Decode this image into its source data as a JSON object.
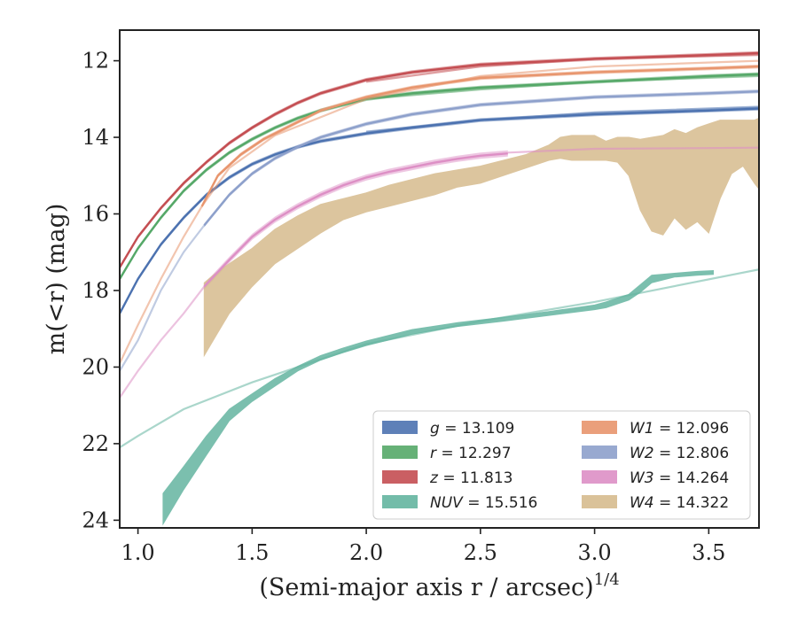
{
  "chart_data": {
    "type": "line",
    "xlabel": "(Semi-major axis r / arcsec)",
    "xlabel_superscript": "1/4",
    "ylabel": "m(<r) (mag)",
    "xlim": [
      0.92,
      3.72
    ],
    "ylim": [
      24.2,
      11.2
    ],
    "y_inverted": true,
    "x_ticks": [
      1.0,
      1.5,
      2.0,
      2.5,
      3.0,
      3.5
    ],
    "x_tick_labels": [
      "1.0",
      "1.5",
      "2.0",
      "2.5",
      "3.0",
      "3.5"
    ],
    "y_ticks": [
      12,
      14,
      16,
      18,
      20,
      22,
      24
    ],
    "y_tick_labels": [
      "12",
      "14",
      "16",
      "18",
      "20",
      "22",
      "24"
    ],
    "grid": false,
    "legend_position": "lower-right",
    "legend_columns": 2,
    "series": [
      {
        "name": "g = 13.109",
        "legend_italic": "g",
        "legend_value": "= 13.109",
        "color": "#4c72b0",
        "points": [
          [
            0.92,
            18.6
          ],
          [
            1.0,
            17.7
          ],
          [
            1.1,
            16.8
          ],
          [
            1.2,
            16.1
          ],
          [
            1.3,
            15.5
          ],
          [
            1.4,
            15.05
          ],
          [
            1.5,
            14.7
          ],
          [
            1.6,
            14.45
          ],
          [
            1.7,
            14.25
          ],
          [
            1.8,
            14.1
          ],
          [
            2.0,
            13.9
          ],
          [
            2.2,
            13.75
          ],
          [
            2.5,
            13.55
          ],
          [
            3.0,
            13.4
          ],
          [
            3.5,
            13.3
          ],
          [
            3.72,
            13.25
          ]
        ],
        "extrapolation": [
          [
            2.0,
            13.85
          ],
          [
            2.5,
            13.55
          ],
          [
            3.0,
            13.35
          ],
          [
            3.72,
            13.2
          ]
        ],
        "band_half_width": 0.05
      },
      {
        "name": "r = 12.297",
        "legend_italic": "r",
        "legend_value": "= 12.297",
        "color": "#55a868",
        "points": [
          [
            0.92,
            17.7
          ],
          [
            1.0,
            16.9
          ],
          [
            1.1,
            16.1
          ],
          [
            1.2,
            15.4
          ],
          [
            1.3,
            14.85
          ],
          [
            1.4,
            14.4
          ],
          [
            1.5,
            14.05
          ],
          [
            1.6,
            13.75
          ],
          [
            1.7,
            13.5
          ],
          [
            1.8,
            13.3
          ],
          [
            2.0,
            13.0
          ],
          [
            2.2,
            12.85
          ],
          [
            2.5,
            12.7
          ],
          [
            3.0,
            12.55
          ],
          [
            3.5,
            12.4
          ],
          [
            3.72,
            12.35
          ]
        ],
        "extrapolation": [
          [
            2.0,
            13.0
          ],
          [
            2.5,
            12.75
          ],
          [
            3.0,
            12.55
          ],
          [
            3.72,
            12.4
          ]
        ],
        "band_half_width": 0.05
      },
      {
        "name": "z = 11.813",
        "legend_italic": "z",
        "legend_value": "= 11.813",
        "color": "#c44e52",
        "points": [
          [
            0.92,
            17.4
          ],
          [
            1.0,
            16.6
          ],
          [
            1.1,
            15.85
          ],
          [
            1.2,
            15.2
          ],
          [
            1.3,
            14.65
          ],
          [
            1.4,
            14.15
          ],
          [
            1.5,
            13.75
          ],
          [
            1.6,
            13.4
          ],
          [
            1.7,
            13.1
          ],
          [
            1.8,
            12.85
          ],
          [
            2.0,
            12.5
          ],
          [
            2.2,
            12.3
          ],
          [
            2.5,
            12.1
          ],
          [
            3.0,
            11.95
          ],
          [
            3.5,
            11.85
          ],
          [
            3.72,
            11.8
          ]
        ],
        "extrapolation": [
          [
            2.0,
            12.55
          ],
          [
            2.5,
            12.15
          ],
          [
            3.0,
            11.95
          ],
          [
            3.72,
            11.85
          ]
        ],
        "band_half_width": 0.05
      },
      {
        "name": "NUV = 15.516",
        "legend_italic": "NUV",
        "legend_value": "= 15.516",
        "color": "#64b5a0",
        "band": [
          [
            1.11,
            23.3,
            24.1
          ],
          [
            1.2,
            22.6,
            23.2
          ],
          [
            1.3,
            21.8,
            22.3
          ],
          [
            1.4,
            21.1,
            21.4
          ],
          [
            1.5,
            20.7,
            20.9
          ],
          [
            1.6,
            20.3,
            20.5
          ],
          [
            1.7,
            19.98,
            20.1
          ],
          [
            1.8,
            19.7,
            19.82
          ],
          [
            1.9,
            19.5,
            19.62
          ],
          [
            2.0,
            19.32,
            19.44
          ],
          [
            2.2,
            19.02,
            19.14
          ],
          [
            2.4,
            18.84,
            18.94
          ],
          [
            2.6,
            18.7,
            18.8
          ],
          [
            2.8,
            18.55,
            18.65
          ],
          [
            3.0,
            18.38,
            18.5
          ],
          [
            3.05,
            18.3,
            18.45
          ],
          [
            3.15,
            18.1,
            18.25
          ],
          [
            3.2,
            17.85,
            18.05
          ],
          [
            3.25,
            17.6,
            17.8
          ],
          [
            3.35,
            17.55,
            17.65
          ],
          [
            3.45,
            17.5,
            17.6
          ],
          [
            3.52,
            17.48,
            17.58
          ]
        ],
        "extrapolation": [
          [
            0.92,
            22.1
          ],
          [
            1.0,
            21.8
          ],
          [
            1.2,
            21.1
          ],
          [
            1.5,
            20.4
          ],
          [
            2.0,
            19.4
          ],
          [
            2.5,
            18.8
          ],
          [
            3.0,
            18.3
          ],
          [
            3.72,
            17.45
          ]
        ]
      },
      {
        "name": "W1 = 12.096",
        "legend_italic": "W1",
        "legend_value": "= 12.096",
        "color": "#e8956d",
        "points": [
          [
            1.28,
            15.8
          ],
          [
            1.35,
            15.0
          ],
          [
            1.45,
            14.45
          ],
          [
            1.55,
            14.05
          ],
          [
            1.7,
            13.6
          ],
          [
            1.8,
            13.3
          ],
          [
            2.0,
            12.95
          ],
          [
            2.2,
            12.7
          ],
          [
            2.5,
            12.45
          ],
          [
            3.0,
            12.3
          ],
          [
            3.5,
            12.2
          ],
          [
            3.72,
            12.15
          ]
        ],
        "extrapolation": [
          [
            0.92,
            19.9
          ],
          [
            1.0,
            18.9
          ],
          [
            1.1,
            17.7
          ],
          [
            1.2,
            16.6
          ],
          [
            1.28,
            15.8
          ],
          [
            1.4,
            14.8
          ],
          [
            1.6,
            13.95
          ],
          [
            2.0,
            13.0
          ],
          [
            2.5,
            12.4
          ],
          [
            3.0,
            12.15
          ],
          [
            3.72,
            12.0
          ]
        ],
        "band_half_width": 0.05
      },
      {
        "name": "W2 = 12.806",
        "legend_italic": "W2",
        "legend_value": "= 12.806",
        "color": "#8da0cb",
        "points": [
          [
            1.29,
            16.3
          ],
          [
            1.4,
            15.5
          ],
          [
            1.5,
            14.95
          ],
          [
            1.6,
            14.55
          ],
          [
            1.7,
            14.25
          ],
          [
            1.8,
            14.0
          ],
          [
            2.0,
            13.65
          ],
          [
            2.2,
            13.4
          ],
          [
            2.5,
            13.15
          ],
          [
            3.0,
            12.95
          ],
          [
            3.5,
            12.85
          ],
          [
            3.72,
            12.8
          ]
        ],
        "extrapolation": [
          [
            0.92,
            20.1
          ],
          [
            1.0,
            19.3
          ],
          [
            1.1,
            18.0
          ],
          [
            1.2,
            17.0
          ],
          [
            1.29,
            16.3
          ]
        ],
        "band_half_width": 0.05
      },
      {
        "name": "W3 = 14.264",
        "legend_italic": "W3",
        "legend_value": "= 14.264",
        "color": "#dd8fc5",
        "points": [
          [
            1.29,
            17.9
          ],
          [
            1.4,
            17.2
          ],
          [
            1.5,
            16.6
          ],
          [
            1.6,
            16.15
          ],
          [
            1.7,
            15.8
          ],
          [
            1.8,
            15.5
          ],
          [
            1.9,
            15.25
          ],
          [
            2.0,
            15.05
          ],
          [
            2.1,
            14.9
          ],
          [
            2.2,
            14.78
          ],
          [
            2.3,
            14.66
          ],
          [
            2.4,
            14.56
          ],
          [
            2.5,
            14.48
          ],
          [
            2.62,
            14.42
          ]
        ],
        "extrapolation": [
          [
            0.92,
            20.8
          ],
          [
            1.0,
            20.1
          ],
          [
            1.1,
            19.3
          ],
          [
            1.2,
            18.6
          ],
          [
            1.29,
            17.9
          ]
        ],
        "tail": [
          [
            2.62,
            14.4
          ],
          [
            3.0,
            14.3
          ],
          [
            3.5,
            14.28
          ],
          [
            3.72,
            14.27
          ]
        ],
        "band_half_width": 0.08
      },
      {
        "name": "W4 = 14.322",
        "legend_italic": "W4",
        "legend_value": "= 14.322",
        "color": "#d6bb8e",
        "band": [
          [
            1.29,
            17.8,
            19.7
          ],
          [
            1.35,
            17.5,
            19.1
          ],
          [
            1.4,
            17.3,
            18.6
          ],
          [
            1.5,
            16.9,
            17.9
          ],
          [
            1.6,
            16.4,
            17.3
          ],
          [
            1.7,
            16.05,
            16.9
          ],
          [
            1.8,
            15.75,
            16.5
          ],
          [
            1.9,
            15.6,
            16.15
          ],
          [
            2.0,
            15.45,
            15.95
          ],
          [
            2.1,
            15.25,
            15.8
          ],
          [
            2.2,
            15.1,
            15.65
          ],
          [
            2.3,
            14.95,
            15.5
          ],
          [
            2.4,
            14.85,
            15.3
          ],
          [
            2.5,
            14.75,
            15.2
          ],
          [
            2.6,
            14.6,
            15.0
          ],
          [
            2.7,
            14.45,
            14.8
          ],
          [
            2.8,
            14.2,
            14.6
          ],
          [
            2.85,
            14.0,
            14.55
          ],
          [
            2.9,
            13.95,
            14.6
          ],
          [
            3.0,
            13.95,
            14.6
          ],
          [
            3.05,
            14.1,
            14.6
          ],
          [
            3.1,
            14.0,
            14.65
          ],
          [
            3.15,
            14.0,
            15.0
          ],
          [
            3.2,
            14.05,
            15.9
          ],
          [
            3.25,
            14.0,
            16.45
          ],
          [
            3.3,
            13.95,
            16.55
          ],
          [
            3.35,
            13.8,
            16.1
          ],
          [
            3.4,
            13.9,
            16.4
          ],
          [
            3.45,
            13.75,
            16.2
          ],
          [
            3.5,
            13.65,
            16.5
          ],
          [
            3.55,
            13.55,
            15.6
          ],
          [
            3.6,
            13.55,
            14.95
          ],
          [
            3.65,
            13.55,
            14.75
          ],
          [
            3.7,
            13.55,
            15.2
          ],
          [
            3.72,
            13.5,
            15.35
          ]
        ]
      }
    ]
  }
}
